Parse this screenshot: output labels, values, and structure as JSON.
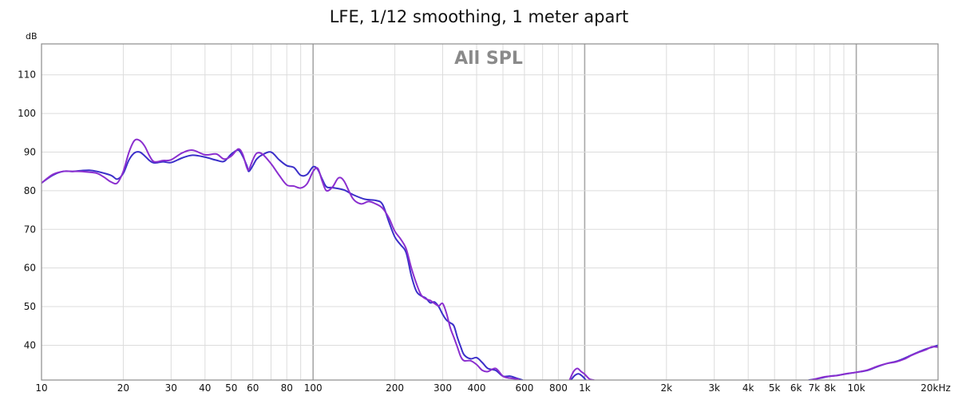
{
  "chart_data": {
    "type": "line",
    "title": "LFE, 1/12 smoothing, 1 meter apart",
    "watermark": "All SPL",
    "y_unit_label": "dB",
    "x_unit_label": "20kHz",
    "xscale": "log",
    "xlim": [
      10,
      20000
    ],
    "ylim": [
      31,
      118
    ],
    "grid": true,
    "x_ticks": [
      {
        "value": 10,
        "label": "10"
      },
      {
        "value": 20,
        "label": "20"
      },
      {
        "value": 30,
        "label": "30"
      },
      {
        "value": 40,
        "label": "40"
      },
      {
        "value": 50,
        "label": "50"
      },
      {
        "value": 60,
        "label": "60"
      },
      {
        "value": 80,
        "label": "80"
      },
      {
        "value": 100,
        "label": "100"
      },
      {
        "value": 200,
        "label": "200"
      },
      {
        "value": 300,
        "label": "300"
      },
      {
        "value": 400,
        "label": "400"
      },
      {
        "value": 600,
        "label": "600"
      },
      {
        "value": 800,
        "label": "800"
      },
      {
        "value": 1000,
        "label": "1k"
      },
      {
        "value": 2000,
        "label": "2k"
      },
      {
        "value": 3000,
        "label": "3k"
      },
      {
        "value": 4000,
        "label": "4k"
      },
      {
        "value": 5000,
        "label": "5k"
      },
      {
        "value": 6000,
        "label": "6k"
      },
      {
        "value": 7000,
        "label": "7k"
      },
      {
        "value": 8000,
        "label": "8k"
      },
      {
        "value": 10000,
        "label": "10k"
      }
    ],
    "y_ticks": [
      40,
      50,
      60,
      70,
      80,
      90,
      100,
      110
    ],
    "series": [
      {
        "color": "#3b2fc9",
        "points": [
          [
            10,
            82
          ],
          [
            11,
            84
          ],
          [
            12,
            85
          ],
          [
            13,
            85
          ],
          [
            14,
            85.2
          ],
          [
            15,
            85.3
          ],
          [
            16,
            85
          ],
          [
            18,
            84
          ],
          [
            19,
            83
          ],
          [
            20,
            84.5
          ],
          [
            21,
            88
          ],
          [
            22,
            89.8
          ],
          [
            23,
            90
          ],
          [
            24,
            89
          ],
          [
            25,
            87.8
          ],
          [
            26,
            87.2
          ],
          [
            28,
            87.5
          ],
          [
            30,
            87.3
          ],
          [
            33,
            88.5
          ],
          [
            36,
            89.2
          ],
          [
            40,
            88.7
          ],
          [
            44,
            87.9
          ],
          [
            47,
            87.6
          ],
          [
            50,
            89.5
          ],
          [
            53,
            90.5
          ],
          [
            55,
            89
          ],
          [
            57,
            86.5
          ],
          [
            58,
            85
          ],
          [
            60,
            86.5
          ],
          [
            62,
            88.2
          ],
          [
            65,
            89.3
          ],
          [
            70,
            90
          ],
          [
            75,
            88
          ],
          [
            80,
            86.5
          ],
          [
            85,
            86
          ],
          [
            90,
            84
          ],
          [
            95,
            84.2
          ],
          [
            100,
            86.2
          ],
          [
            104,
            85.5
          ],
          [
            108,
            83
          ],
          [
            112,
            81
          ],
          [
            118,
            80.8
          ],
          [
            130,
            80.2
          ],
          [
            140,
            79
          ],
          [
            155,
            77.8
          ],
          [
            170,
            77.5
          ],
          [
            180,
            76.5
          ],
          [
            190,
            72
          ],
          [
            200,
            68
          ],
          [
            210,
            66
          ],
          [
            220,
            64
          ],
          [
            230,
            58
          ],
          [
            240,
            54
          ],
          [
            250,
            52.8
          ],
          [
            260,
            52.2
          ],
          [
            270,
            51
          ],
          [
            280,
            51.2
          ],
          [
            290,
            50
          ],
          [
            300,
            48
          ],
          [
            310,
            46.5
          ],
          [
            320,
            45.8
          ],
          [
            330,
            45
          ],
          [
            340,
            42
          ],
          [
            350,
            39.5
          ],
          [
            360,
            37.5
          ],
          [
            380,
            36.5
          ],
          [
            400,
            36.8
          ],
          [
            420,
            35.5
          ],
          [
            440,
            34
          ],
          [
            470,
            33.5
          ],
          [
            500,
            32
          ],
          [
            530,
            32
          ],
          [
            560,
            31.5
          ],
          [
            590,
            31
          ]
        ]
      },
      {
        "color": "#8b2fcf",
        "points": [
          [
            10,
            82
          ],
          [
            11,
            84.2
          ],
          [
            12,
            85
          ],
          [
            13,
            85
          ],
          [
            14,
            85
          ],
          [
            15,
            84.8
          ],
          [
            16,
            84.5
          ],
          [
            17,
            83.5
          ],
          [
            18,
            82.3
          ],
          [
            19,
            82
          ],
          [
            20,
            85
          ],
          [
            21,
            90
          ],
          [
            22,
            93
          ],
          [
            23,
            93
          ],
          [
            24,
            91.5
          ],
          [
            25,
            89
          ],
          [
            26,
            87.5
          ],
          [
            28,
            87.8
          ],
          [
            30,
            88
          ],
          [
            33,
            89.8
          ],
          [
            36,
            90.5
          ],
          [
            40,
            89.3
          ],
          [
            44,
            89.5
          ],
          [
            47,
            88.2
          ],
          [
            50,
            89
          ],
          [
            53,
            90.8
          ],
          [
            55,
            89.5
          ],
          [
            57,
            86
          ],
          [
            58,
            85.5
          ],
          [
            60,
            88
          ],
          [
            62,
            89.7
          ],
          [
            65,
            89.5
          ],
          [
            70,
            87
          ],
          [
            75,
            84
          ],
          [
            80,
            81.5
          ],
          [
            85,
            81.2
          ],
          [
            90,
            80.7
          ],
          [
            95,
            81.8
          ],
          [
            100,
            85
          ],
          [
            104,
            85.8
          ],
          [
            108,
            82.5
          ],
          [
            112,
            80
          ],
          [
            118,
            81
          ],
          [
            124,
            83.3
          ],
          [
            130,
            82.5
          ],
          [
            140,
            78
          ],
          [
            150,
            76.6
          ],
          [
            160,
            77.2
          ],
          [
            170,
            76.6
          ],
          [
            180,
            75.5
          ],
          [
            190,
            73
          ],
          [
            200,
            69.5
          ],
          [
            210,
            67.5
          ],
          [
            220,
            65
          ],
          [
            230,
            60
          ],
          [
            240,
            56
          ],
          [
            250,
            53
          ],
          [
            260,
            52
          ],
          [
            270,
            51.6
          ],
          [
            280,
            50.8
          ],
          [
            290,
            50.2
          ],
          [
            300,
            50.8
          ],
          [
            310,
            48.2
          ],
          [
            320,
            44.5
          ],
          [
            330,
            42
          ],
          [
            340,
            39.5
          ],
          [
            350,
            37
          ],
          [
            360,
            36
          ],
          [
            380,
            36
          ],
          [
            400,
            35
          ],
          [
            420,
            33.5
          ],
          [
            440,
            33.2
          ],
          [
            470,
            34
          ],
          [
            500,
            32
          ],
          [
            530,
            31.5
          ],
          [
            570,
            31.2
          ]
        ]
      },
      {
        "color": "#3b2fc9",
        "points": [
          [
            890,
            31
          ],
          [
            920,
            32.2
          ],
          [
            950,
            32.6
          ],
          [
            980,
            32
          ],
          [
            1010,
            31
          ]
        ]
      },
      {
        "color": "#8b2fcf",
        "points": [
          [
            880,
            31
          ],
          [
            910,
            33.2
          ],
          [
            940,
            34
          ],
          [
            970,
            33.2
          ],
          [
            1000,
            32.5
          ],
          [
            1040,
            31.3
          ],
          [
            1080,
            31
          ]
        ]
      },
      {
        "color": "#3b2fc9",
        "points": [
          [
            6700,
            31
          ],
          [
            7000,
            31.2
          ],
          [
            7500,
            31.6
          ],
          [
            8000,
            32
          ],
          [
            8500,
            32.2
          ],
          [
            9000,
            32.5
          ],
          [
            10000,
            33
          ],
          [
            11000,
            33.5
          ],
          [
            12000,
            34.5
          ],
          [
            13000,
            35.3
          ],
          [
            14000,
            35.8
          ],
          [
            15000,
            36.6
          ],
          [
            16000,
            37.5
          ],
          [
            17000,
            38.3
          ],
          [
            18000,
            39
          ],
          [
            19000,
            39.5
          ],
          [
            20000,
            40
          ]
        ]
      },
      {
        "color": "#8b2fcf",
        "points": [
          [
            6800,
            31
          ],
          [
            7100,
            31.3
          ],
          [
            7600,
            31.8
          ],
          [
            8100,
            32
          ],
          [
            8600,
            32.2
          ],
          [
            9100,
            32.6
          ],
          [
            10000,
            33
          ],
          [
            11000,
            33.6
          ],
          [
            12000,
            34.6
          ],
          [
            13000,
            35.3
          ],
          [
            14000,
            35.7
          ],
          [
            15000,
            36.4
          ],
          [
            16000,
            37.4
          ],
          [
            17000,
            38.2
          ],
          [
            18000,
            38.8
          ],
          [
            19000,
            39.6
          ],
          [
            20000,
            39.5
          ]
        ]
      }
    ]
  }
}
